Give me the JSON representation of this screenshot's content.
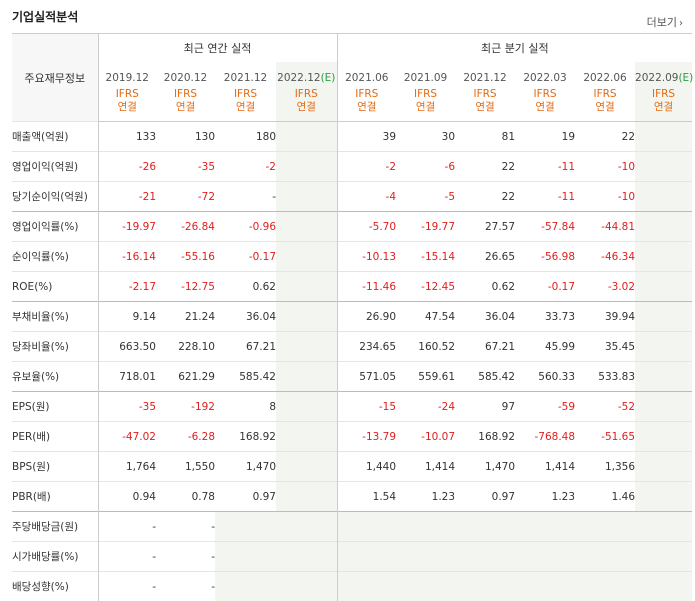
{
  "title": "기업실적분석",
  "more_label": "더보기",
  "header": {
    "row_header": "주요재무정보",
    "annual_label": "최근 연간 실적",
    "quarter_label": "최근 분기 실적",
    "annual_periods": [
      "2019.12",
      "2020.12",
      "2021.12",
      "2022.12"
    ],
    "annual_est": "(E)",
    "quarter_periods": [
      "2021.06",
      "2021.09",
      "2021.12",
      "2022.03",
      "2022.06",
      "2022.09"
    ],
    "quarter_est": "(E)",
    "standard_line1": "IFRS",
    "standard_line2": "연결"
  },
  "rows": [
    {
      "label": "매출액(억원)",
      "values": [
        "133",
        "130",
        "180",
        "",
        "39",
        "30",
        "81",
        "19",
        "22",
        ""
      ]
    },
    {
      "label": "영업이익(억원)",
      "values": [
        "-26",
        "-35",
        "-2",
        "",
        "-2",
        "-6",
        "22",
        "-11",
        "-10",
        ""
      ]
    },
    {
      "label": "당기순이익(억원)",
      "values": [
        "-21",
        "-72",
        "-",
        "",
        "-4",
        "-5",
        "22",
        "-11",
        "-10",
        ""
      ]
    },
    {
      "label": "영업이익률(%)",
      "values": [
        "-19.97",
        "-26.84",
        "-0.96",
        "",
        "-5.70",
        "-19.77",
        "27.57",
        "-57.84",
        "-44.81",
        ""
      ]
    },
    {
      "label": "순이익률(%)",
      "values": [
        "-16.14",
        "-55.16",
        "-0.17",
        "",
        "-10.13",
        "-15.14",
        "26.65",
        "-56.98",
        "-46.34",
        ""
      ]
    },
    {
      "label": "ROE(%)",
      "values": [
        "-2.17",
        "-12.75",
        "0.62",
        "",
        "-11.46",
        "-12.45",
        "0.62",
        "-0.17",
        "-3.02",
        ""
      ]
    },
    {
      "label": "부채비율(%)",
      "values": [
        "9.14",
        "21.24",
        "36.04",
        "",
        "26.90",
        "47.54",
        "36.04",
        "33.73",
        "39.94",
        ""
      ]
    },
    {
      "label": "당좌비율(%)",
      "values": [
        "663.50",
        "228.10",
        "67.21",
        "",
        "234.65",
        "160.52",
        "67.21",
        "45.99",
        "35.45",
        ""
      ]
    },
    {
      "label": "유보율(%)",
      "values": [
        "718.01",
        "621.29",
        "585.42",
        "",
        "571.05",
        "559.61",
        "585.42",
        "560.33",
        "533.83",
        ""
      ]
    },
    {
      "label": "EPS(원)",
      "values": [
        "-35",
        "-192",
        "8",
        "",
        "-15",
        "-24",
        "97",
        "-59",
        "-52",
        ""
      ]
    },
    {
      "label": "PER(배)",
      "values": [
        "-47.02",
        "-6.28",
        "168.92",
        "",
        "-13.79",
        "-10.07",
        "168.92",
        "-768.48",
        "-51.65",
        ""
      ]
    },
    {
      "label": "BPS(원)",
      "values": [
        "1,764",
        "1,550",
        "1,470",
        "",
        "1,440",
        "1,414",
        "1,470",
        "1,414",
        "1,356",
        ""
      ]
    },
    {
      "label": "PBR(배)",
      "values": [
        "0.94",
        "0.78",
        "0.97",
        "",
        "1.54",
        "1.23",
        "0.97",
        "1.23",
        "1.46",
        ""
      ]
    },
    {
      "label": "주당배당금(원)",
      "values": [
        "-",
        "-",
        "",
        "",
        "",
        "",
        "",
        "",
        "",
        ""
      ]
    },
    {
      "label": "시가배당률(%)",
      "values": [
        "-",
        "-",
        "",
        "",
        "",
        "",
        "",
        "",
        "",
        ""
      ]
    },
    {
      "label": "배당성향(%)",
      "values": [
        "-",
        "-",
        "",
        "",
        "",
        "",
        "",
        "",
        "",
        ""
      ]
    }
  ]
}
